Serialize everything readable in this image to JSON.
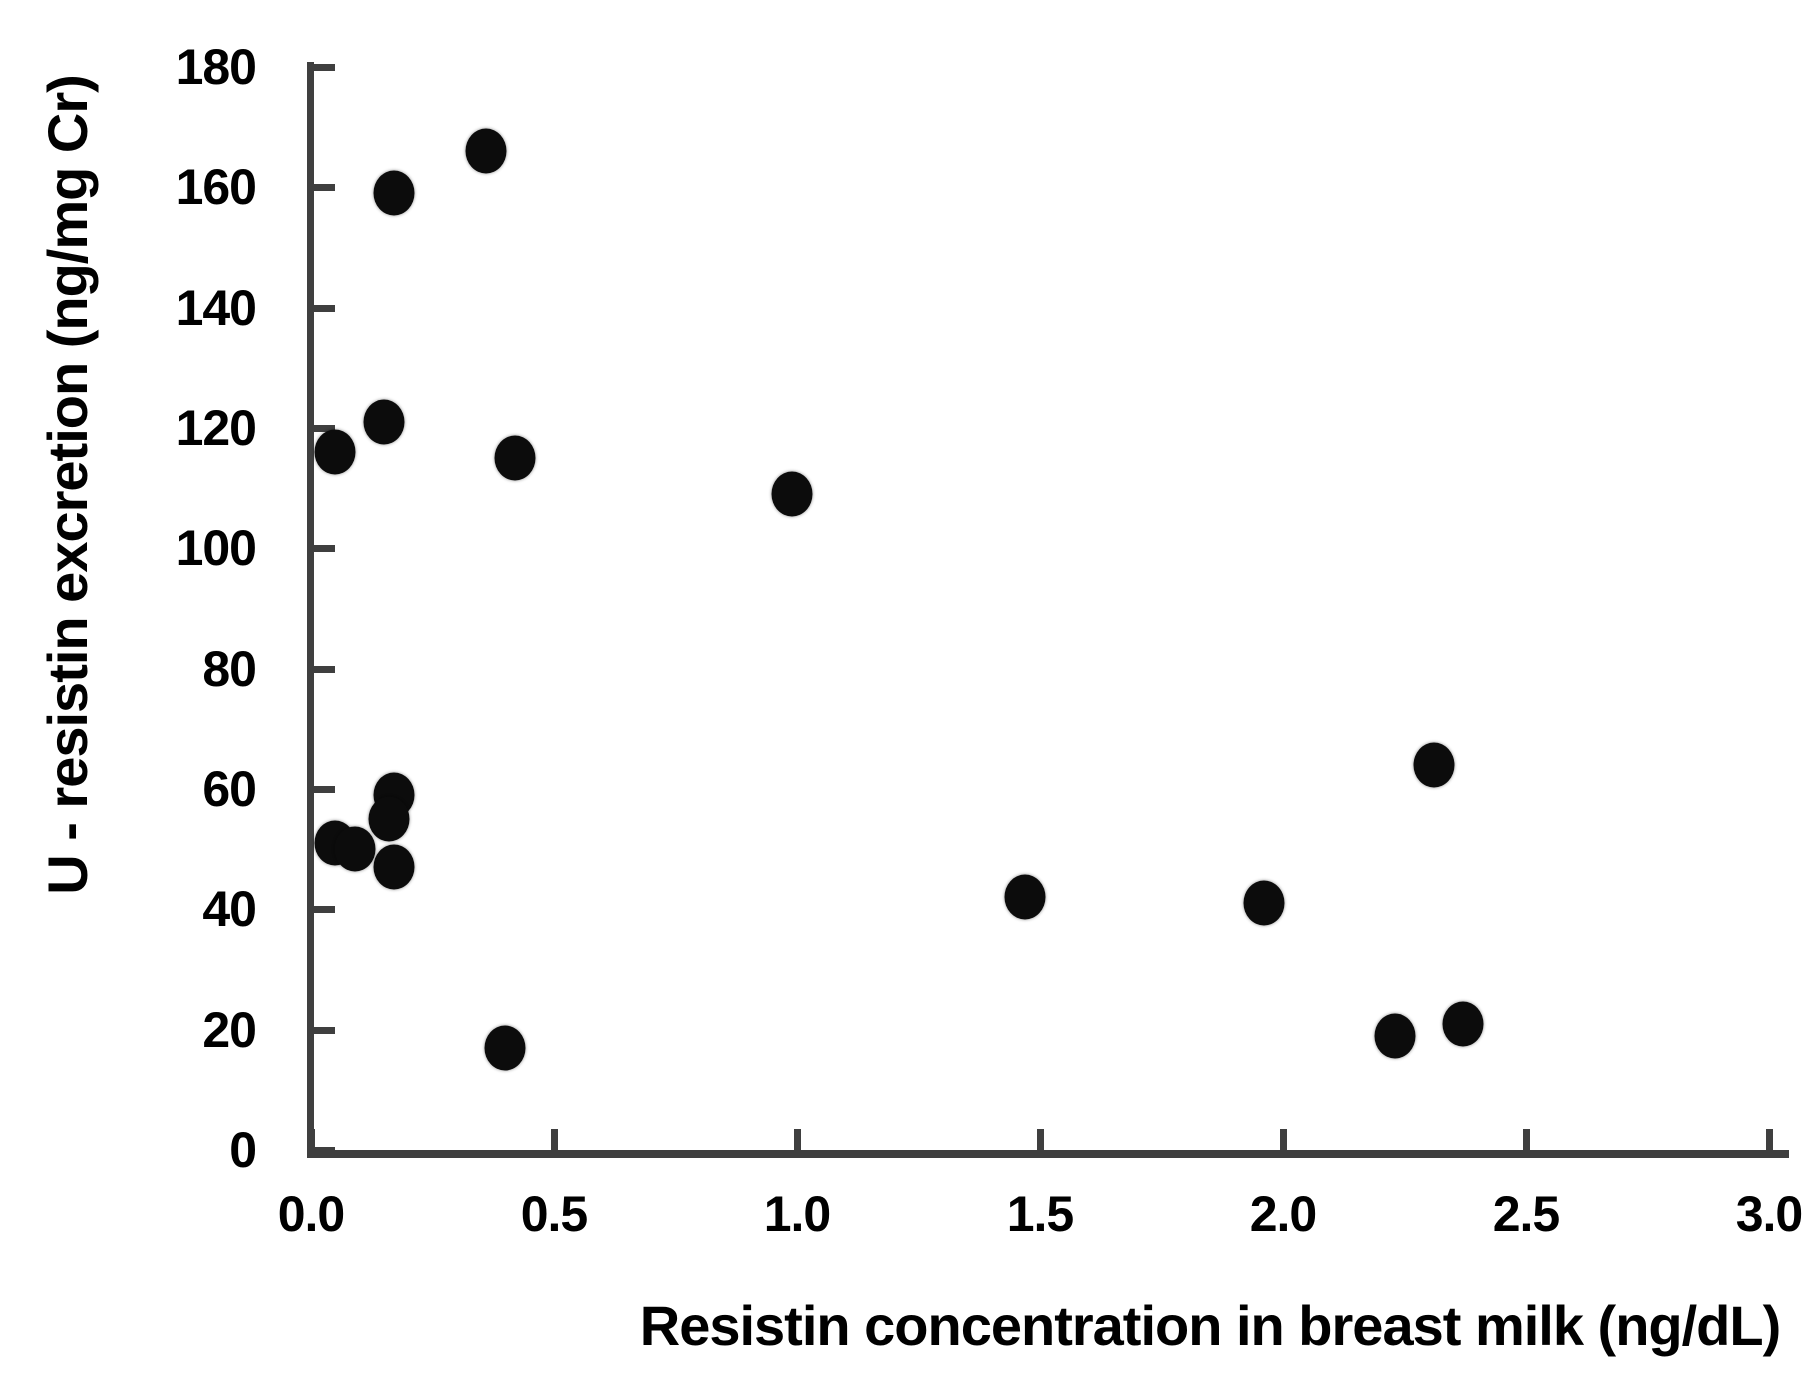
{
  "chart_data": {
    "type": "scatter",
    "title": "",
    "xlabel": "Resistin concentration in breast milk (ng/dL)",
    "ylabel": "U - resistin excretion (ng/mg Cr)",
    "xlim": [
      0,
      3.0
    ],
    "ylim": [
      0,
      180
    ],
    "x_ticks": [
      0.0,
      0.5,
      1.0,
      1.5,
      2.0,
      2.5,
      3.0
    ],
    "x_tick_labels": [
      "0.0",
      "0.5",
      "1.0",
      "1.5",
      "2.0",
      "2.5",
      "3.0"
    ],
    "y_ticks": [
      0,
      20,
      40,
      60,
      80,
      100,
      120,
      140,
      160,
      180
    ],
    "y_tick_labels": [
      "0",
      "20",
      "40",
      "60",
      "80",
      "100",
      "120",
      "140",
      "160",
      "180"
    ],
    "grid": false,
    "legend": "none",
    "marker": {
      "shape": "circle",
      "color": "#0c0c0c"
    },
    "axis_color": "#3f3f3f",
    "text_color": "#000000",
    "background": "#ffffff",
    "points": [
      {
        "x": 0.36,
        "y": 166
      },
      {
        "x": 0.17,
        "y": 159
      },
      {
        "x": 0.15,
        "y": 121
      },
      {
        "x": 0.05,
        "y": 116
      },
      {
        "x": 0.42,
        "y": 115
      },
      {
        "x": 0.99,
        "y": 109
      },
      {
        "x": 0.17,
        "y": 59
      },
      {
        "x": 0.16,
        "y": 55
      },
      {
        "x": 0.05,
        "y": 51
      },
      {
        "x": 0.09,
        "y": 50
      },
      {
        "x": 0.17,
        "y": 47
      },
      {
        "x": 0.4,
        "y": 17
      },
      {
        "x": 1.47,
        "y": 42
      },
      {
        "x": 1.96,
        "y": 41
      },
      {
        "x": 2.31,
        "y": 64
      },
      {
        "x": 2.23,
        "y": 19
      },
      {
        "x": 2.37,
        "y": 21
      }
    ]
  }
}
